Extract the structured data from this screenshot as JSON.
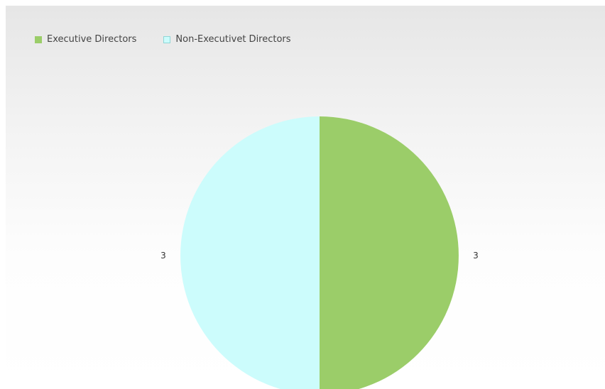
{
  "chart_data": {
    "type": "pie",
    "title": "",
    "categories": [
      "Executive Directors",
      "Non-Executivet Directors"
    ],
    "values": [
      3,
      3
    ],
    "data_labels": [
      "3",
      "3"
    ],
    "colors": [
      "#9bcd69",
      "#ccfcfc"
    ],
    "legend_placement": "top-left"
  }
}
